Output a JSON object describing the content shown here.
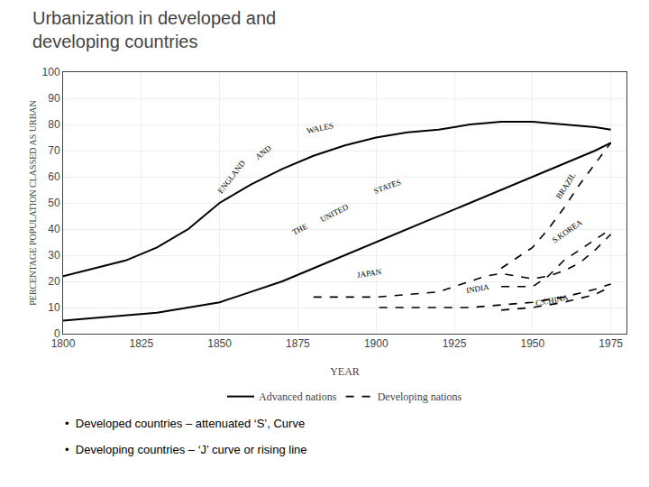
{
  "chart_data": {
    "type": "line",
    "title": [
      "Urbanization in developed and",
      "developing countries"
    ],
    "xlabel": "YEAR",
    "ylabel": "PERCENTAGE POPULATION CLASSED AS URBAN",
    "xlim": [
      1800,
      1980
    ],
    "ylim": [
      0,
      100
    ],
    "xticks": [
      1800,
      1825,
      1850,
      1875,
      1900,
      1925,
      1950,
      1975
    ],
    "yticks": [
      0,
      10,
      20,
      30,
      40,
      50,
      60,
      70,
      80,
      90,
      100
    ],
    "grid": true,
    "legend": "bottom",
    "series": [
      {
        "name": "Advanced nations",
        "color": "black",
        "line_style": "solid",
        "x": [
          1800,
          1810,
          1820,
          1830,
          1840,
          1850,
          1860,
          1870,
          1880,
          1890,
          1900,
          1910,
          1920,
          1930,
          1940,
          1950,
          1960,
          1970,
          1975
        ],
        "values": [
          22,
          25,
          28,
          33,
          40,
          50,
          57,
          63,
          68,
          72,
          75,
          77,
          78,
          80,
          81,
          81,
          80,
          79,
          78
        ]
      },
      {
        "name": "Advanced nations",
        "color": "black",
        "line_style": "solid",
        "x": [
          1800,
          1810,
          1820,
          1830,
          1840,
          1850,
          1860,
          1870,
          1880,
          1890,
          1900,
          1910,
          1920,
          1930,
          1940,
          1950,
          1960,
          1970,
          1975
        ],
        "values": [
          5,
          6,
          7,
          8,
          10,
          12,
          16,
          20,
          25,
          30,
          35,
          40,
          45,
          50,
          55,
          60,
          65,
          70,
          73
        ]
      },
      {
        "name": "Developing nations",
        "color": "black",
        "line_style": "dashed",
        "x": [
          1880,
          1890,
          1900,
          1910,
          1920,
          1925,
          1930,
          1935,
          1940,
          1945,
          1950,
          1955,
          1960,
          1965,
          1970,
          1975
        ],
        "values": [
          14,
          14,
          14,
          15,
          16,
          18,
          20,
          22,
          23,
          22,
          21,
          22,
          24,
          27,
          32,
          38
        ]
      },
      {
        "name": "Developing nations",
        "color": "black",
        "line_style": "dashed",
        "x": [
          1940,
          1945,
          1950,
          1955,
          1960,
          1965,
          1970,
          1975
        ],
        "values": [
          25,
          29,
          33,
          40,
          48,
          57,
          65,
          73
        ]
      },
      {
        "name": "Developing nations",
        "color": "black",
        "line_style": "dashed",
        "x": [
          1940,
          1945,
          1950,
          1955,
          1960,
          1965,
          1970,
          1975
        ],
        "values": [
          18,
          18,
          18,
          22,
          28,
          32,
          36,
          40
        ]
      },
      {
        "name": "Developing nations",
        "color": "black",
        "line_style": "dashed",
        "x": [
          1901,
          1910,
          1920,
          1930,
          1940,
          1950,
          1960,
          1970,
          1975
        ],
        "values": [
          10,
          10,
          10,
          10,
          11,
          12,
          14,
          17,
          19
        ]
      },
      {
        "name": "Developing nations",
        "color": "black",
        "line_style": "dashed",
        "x": [
          1940,
          1950,
          1960,
          1970,
          1975
        ],
        "values": [
          9,
          10,
          12,
          15,
          18
        ]
      }
    ],
    "annotations": [
      {
        "text": "ENGLAND",
        "x": 1848,
        "y": 52
      },
      {
        "text": "AND",
        "x": 1860,
        "y": 65
      },
      {
        "text": "WALES",
        "x": 1877,
        "y": 75
      },
      {
        "text": "THE",
        "x": 1872,
        "y": 36
      },
      {
        "text": "UNITED",
        "x": 1881,
        "y": 41
      },
      {
        "text": "STATES",
        "x": 1898,
        "y": 52
      },
      {
        "text": "JAPAN",
        "x": 1893,
        "y": 20
      },
      {
        "text": "BRAZIL",
        "x": 1956,
        "y": 50
      },
      {
        "text": "S.KOREA",
        "x": 1955,
        "y": 33
      },
      {
        "text": "INDIA",
        "x": 1928,
        "y": 14
      },
      {
        "text": "C.CHINA",
        "x": 1950,
        "y": 9
      },
      {
        "text": "•  Developed countries – attenuated ‘S’, Curve"
      },
      {
        "text": "•  Developing countries – ‘J’ curve or rising line"
      }
    ]
  }
}
